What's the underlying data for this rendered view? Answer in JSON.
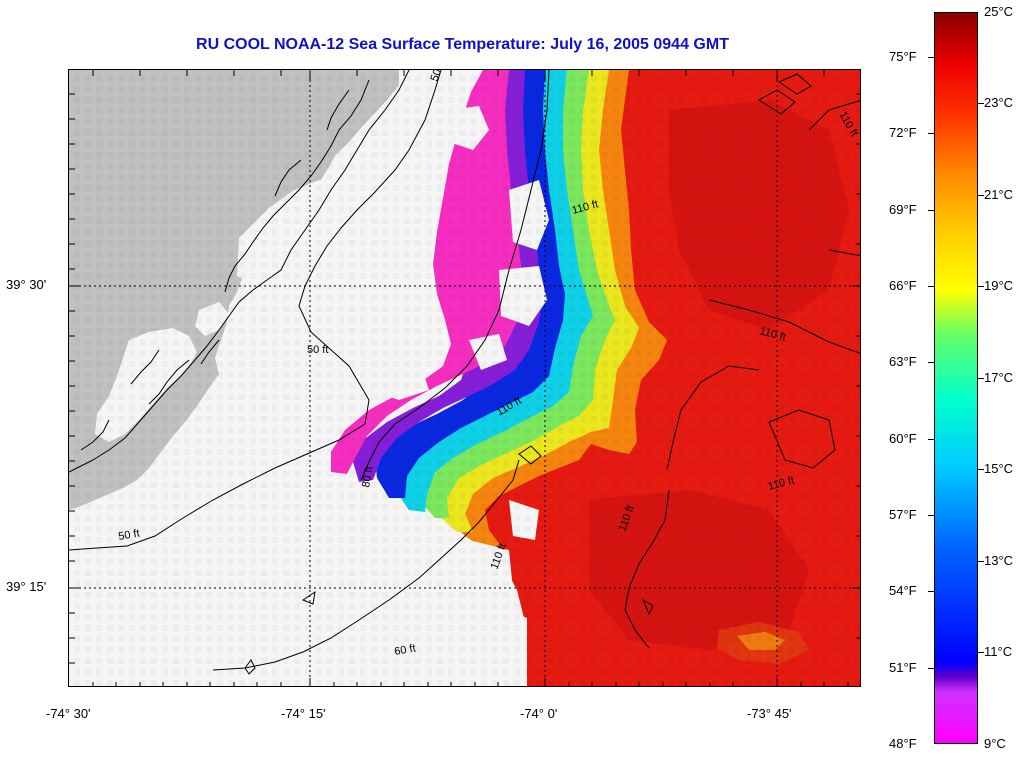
{
  "title": "RU COOL  NOAA-12  Sea Surface Temperature:  July 16, 2005 0944 GMT",
  "map": {
    "latitude_labels": [
      "39° 30'",
      "39° 15'"
    ],
    "longitude_labels": [
      "-74° 30'",
      "-74° 15'",
      "-74° 0'",
      "-73° 45'"
    ],
    "contour_labels": [
      "50",
      "50 ft",
      "50 ft",
      "60 ft",
      "80 ft",
      "110 ft",
      "110 ft",
      "110 ft",
      "110 ft",
      "110 ft",
      "110 ft",
      "110 ft"
    ],
    "land_color": "#c8c8c8",
    "cloud_mask_color": "#ffffff",
    "contour_color": "#000000"
  },
  "colorbar": {
    "celsius_labels": [
      "25°C",
      "23°C",
      "21°C",
      "19°C",
      "17°C",
      "15°C",
      "13°C",
      "11°C",
      "9°C"
    ],
    "fahrenheit_labels": [
      "75°F",
      "72°F",
      "69°F",
      "66°F",
      "63°F",
      "60°F",
      "57°F",
      "54°F",
      "51°F",
      "48°F"
    ],
    "range_celsius": [
      9,
      25
    ],
    "colors": [
      "#ff00ff",
      "#6600cc",
      "#0000ff",
      "#00ccff",
      "#00ffcc",
      "#ffff00",
      "#ff8800",
      "#ee0000",
      "#8b0000"
    ]
  }
}
